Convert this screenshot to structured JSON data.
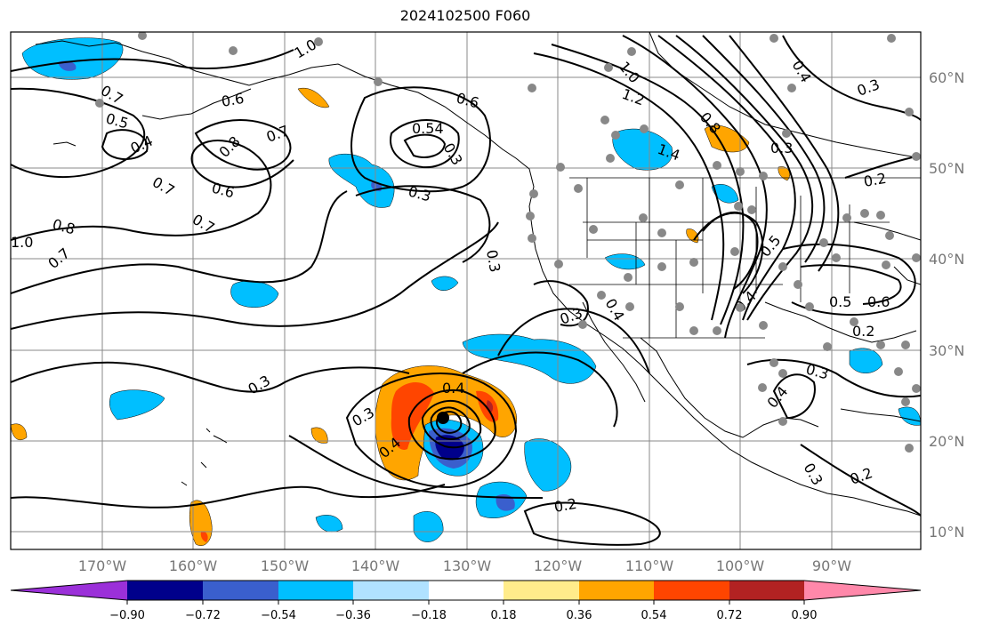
{
  "title": "2024102500 F060",
  "lon_labels": [
    "170°W",
    "160°W",
    "150°W",
    "140°W",
    "130°W",
    "120°W",
    "110°W",
    "100°W",
    "90°W"
  ],
  "lat_labels": [
    "60°N",
    "50°N",
    "40°N",
    "30°N",
    "20°N",
    "10°N"
  ],
  "colorbar": {
    "colors": [
      "#9b30d9",
      "#00008b",
      "#3a5fcd",
      "#00bfff",
      "#b0e2ff",
      "#ffffff",
      "#ffec8b",
      "#ffa500",
      "#ff4500",
      "#b22222",
      "#ff88aa"
    ],
    "tick_labels": [
      "−0.90",
      "−0.72",
      "−0.54",
      "−0.36",
      "−0.18",
      "0.18",
      "0.36",
      "0.54",
      "0.72",
      "0.90"
    ]
  },
  "contour_labels": [
    "0.7",
    "1.0",
    "0.8",
    "0.7",
    "0.5",
    "0.4",
    "0.7",
    "0.6",
    "0.7",
    "0.8",
    "1.0",
    "0.7",
    "0.6",
    "0.54",
    "0.3",
    "0.3",
    "1.0",
    "1.2",
    "1.4",
    "0.8",
    "0.3",
    "0.4",
    "0.3",
    "0.2",
    "0.5",
    "0.6",
    "0.4",
    "0.3",
    "0.3",
    "0.4",
    "0.3",
    "0.2",
    "0.3",
    "0.4",
    "0.2",
    "0.3",
    "0.2",
    "0.4",
    "0.3",
    "0.6",
    "0.5",
    "0.4"
  ],
  "colors": {
    "grid": "#888888",
    "coast": "#000000",
    "station": "#888888"
  }
}
